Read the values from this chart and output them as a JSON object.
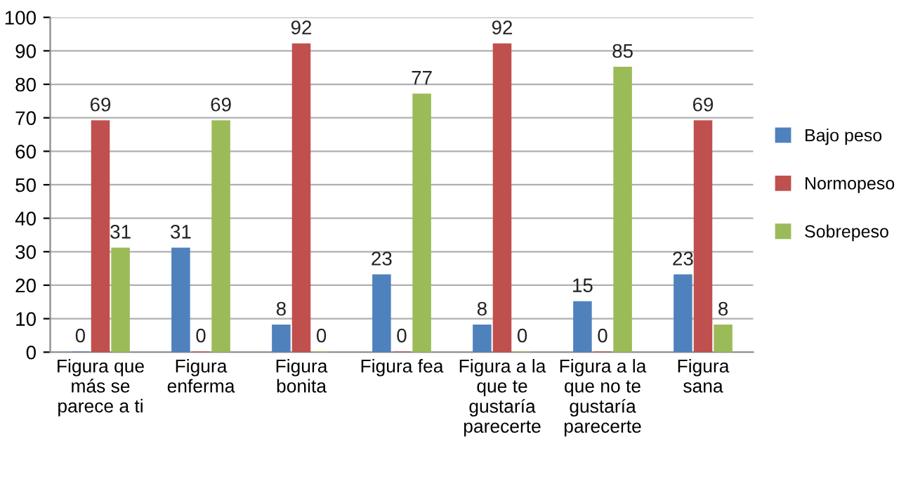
{
  "chart_data": {
    "type": "bar",
    "categories": [
      "Figura que\nmás se\nparece a ti",
      "Figura\nenferma",
      "Figura\nbonita",
      "Figura fea",
      "Figura a la\nque te\ngustaría\nparecerte",
      "Figura a la\nque no te\ngustaría\nparecerte",
      "Figura\nsana"
    ],
    "series": [
      {
        "name": "Bajo peso",
        "color": "#4f81bd",
        "values": [
          0,
          31,
          8,
          23,
          8,
          15,
          23
        ]
      },
      {
        "name": "Normopeso",
        "color": "#c0504d",
        "values": [
          69,
          0,
          92,
          0,
          92,
          0,
          69
        ]
      },
      {
        "name": "Sobrepeso",
        "color": "#9bbb59",
        "values": [
          31,
          69,
          0,
          77,
          0,
          85,
          8
        ]
      }
    ],
    "ylim": [
      0,
      100
    ],
    "yticks": [
      0,
      10,
      20,
      30,
      40,
      50,
      60,
      70,
      80,
      90,
      100
    ],
    "grid": "y",
    "legend": "right",
    "data_labels": true
  }
}
